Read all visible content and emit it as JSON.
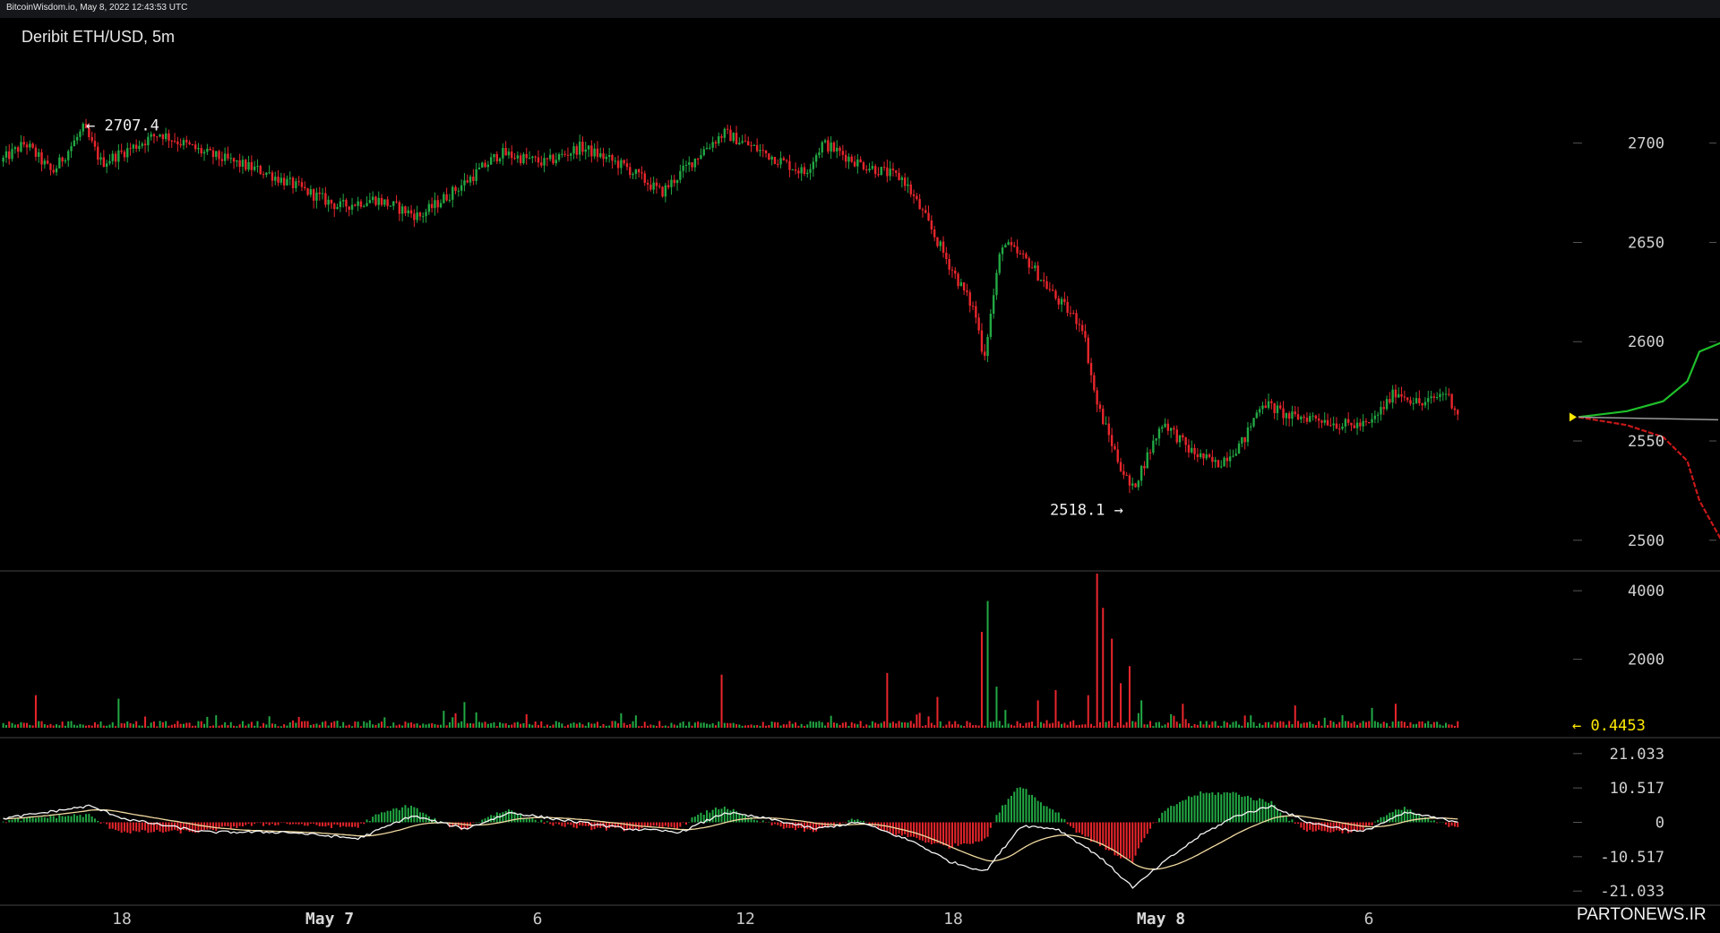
{
  "header": {
    "source_line": "BitcoinWisdom.io, May 8, 2022 12:43:53 UTC"
  },
  "chart_title": "Deribit ETH/USD, 5m",
  "watermark": "PARTONEWS.IR",
  "colors": {
    "up": "#22a844",
    "down": "#e8262c",
    "macd_line": "#f4f4f4",
    "signal_line": "#f0d9a0",
    "last_value": "#ffe800",
    "depth_bid": "#1fbf2a",
    "depth_ask": "#c81818",
    "grid_separator": "#444444"
  },
  "chart_data": [
    {
      "type": "candlestick",
      "panel": "price",
      "title": "Deribit ETH/USD, 5m",
      "ylim": [
        2485,
        2745
      ],
      "y_ticks": [
        2700,
        2650,
        2600,
        2550,
        2500
      ],
      "annotations": {
        "high": "← 2707.4",
        "low": "2518.1 →"
      },
      "high_value": 2707.4,
      "low_value": 2518.1,
      "last_price": 2562,
      "path_keypoints": [
        [
          0,
          2690
        ],
        [
          30,
          2700
        ],
        [
          60,
          2685
        ],
        [
          95,
          2707.4
        ],
        [
          115,
          2690
        ],
        [
          150,
          2698
        ],
        [
          180,
          2705
        ],
        [
          230,
          2695
        ],
        [
          300,
          2685
        ],
        [
          380,
          2668
        ],
        [
          420,
          2672
        ],
        [
          470,
          2663
        ],
        [
          520,
          2680
        ],
        [
          560,
          2695
        ],
        [
          610,
          2690
        ],
        [
          650,
          2698
        ],
        [
          700,
          2688
        ],
        [
          740,
          2675
        ],
        [
          790,
          2698
        ],
        [
          810,
          2705
        ],
        [
          860,
          2694
        ],
        [
          900,
          2685
        ],
        [
          920,
          2700
        ],
        [
          960,
          2690
        ],
        [
          1010,
          2682
        ],
        [
          1035,
          2662
        ],
        [
          1060,
          2640
        ],
        [
          1090,
          2615
        ],
        [
          1100,
          2592
        ],
        [
          1120,
          2650
        ],
        [
          1150,
          2640
        ],
        [
          1180,
          2622
        ],
        [
          1210,
          2608
        ],
        [
          1225,
          2570
        ],
        [
          1250,
          2540
        ],
        [
          1265,
          2525
        ],
        [
          1280,
          2540
        ],
        [
          1300,
          2560
        ],
        [
          1330,
          2545
        ],
        [
          1360,
          2538
        ],
        [
          1390,
          2550
        ],
        [
          1410,
          2570
        ],
        [
          1440,
          2562
        ],
        [
          1470,
          2562
        ],
        [
          1500,
          2558
        ],
        [
          1530,
          2558
        ],
        [
          1560,
          2575
        ],
        [
          1590,
          2568
        ],
        [
          1615,
          2575
        ],
        [
          1632,
          2562
        ]
      ]
    },
    {
      "type": "bar",
      "panel": "volume",
      "ylim": [
        0,
        4500
      ],
      "y_ticks": [
        4000,
        2000
      ],
      "last_value_label": "← 0.4453",
      "spikes": [
        [
          40,
          950
        ],
        [
          133,
          850
        ],
        [
          520,
          750
        ],
        [
          805,
          1550
        ],
        [
          990,
          1600
        ],
        [
          1046,
          900
        ],
        [
          1095,
          2800
        ],
        [
          1102,
          3700
        ],
        [
          1112,
          1200
        ],
        [
          1160,
          800
        ],
        [
          1180,
          1100
        ],
        [
          1215,
          950
        ],
        [
          1225,
          4500
        ],
        [
          1232,
          3500
        ],
        [
          1240,
          2600
        ],
        [
          1250,
          1300
        ],
        [
          1262,
          1800
        ],
        [
          1275,
          800
        ],
        [
          1320,
          700
        ],
        [
          1445,
          650
        ],
        [
          1532,
          580
        ],
        [
          1557,
          700
        ]
      ]
    },
    {
      "type": "line",
      "panel": "macd",
      "ylim": [
        -24,
        24
      ],
      "y_ticks": [
        "21.033",
        "10.517",
        "0",
        "-10.517",
        "-21.033"
      ],
      "series": [
        {
          "role": "histogram"
        },
        {
          "role": "macd"
        },
        {
          "role": "signal"
        }
      ],
      "macd_keypoints": [
        [
          0,
          1
        ],
        [
          100,
          5
        ],
        [
          140,
          1
        ],
        [
          230,
          -3
        ],
        [
          320,
          -3
        ],
        [
          400,
          -5
        ],
        [
          460,
          2
        ],
        [
          520,
          -2
        ],
        [
          570,
          3
        ],
        [
          620,
          1
        ],
        [
          700,
          -2
        ],
        [
          760,
          -3
        ],
        [
          810,
          3
        ],
        [
          860,
          1
        ],
        [
          910,
          -2
        ],
        [
          960,
          0
        ],
        [
          1020,
          -6
        ],
        [
          1060,
          -12
        ],
        [
          1100,
          -15
        ],
        [
          1140,
          -1
        ],
        [
          1180,
          -2
        ],
        [
          1225,
          -10
        ],
        [
          1265,
          -20
        ],
        [
          1300,
          -12
        ],
        [
          1340,
          -4
        ],
        [
          1380,
          2
        ],
        [
          1420,
          5
        ],
        [
          1460,
          0
        ],
        [
          1520,
          -3
        ],
        [
          1570,
          3
        ],
        [
          1610,
          1
        ],
        [
          1632,
          0
        ]
      ]
    },
    {
      "type": "depth",
      "panel": "price-sidebar",
      "bid_keypoints": [
        [
          0,
          2562
        ],
        [
          40,
          2565
        ],
        [
          70,
          2570
        ],
        [
          90,
          2580
        ],
        [
          100,
          2595
        ],
        [
          120,
          2600
        ]
      ],
      "ask_keypoints": [
        [
          0,
          2562
        ],
        [
          40,
          2558
        ],
        [
          70,
          2552
        ],
        [
          90,
          2540
        ],
        [
          100,
          2520
        ],
        [
          120,
          2498
        ]
      ],
      "mid_level": 2562
    },
    {
      "type": "axis",
      "panel": "time-axis",
      "x_ticks": [
        {
          "label": "18",
          "bold": false,
          "pos": 136
        },
        {
          "label": "May 7",
          "bold": true,
          "pos": 368
        },
        {
          "label": "6",
          "bold": false,
          "pos": 600
        },
        {
          "label": "12",
          "bold": false,
          "pos": 832
        },
        {
          "label": "18",
          "bold": false,
          "pos": 1064
        },
        {
          "label": "May 8",
          "bold": true,
          "pos": 1296
        },
        {
          "label": "6",
          "bold": false,
          "pos": 1528
        }
      ]
    }
  ]
}
